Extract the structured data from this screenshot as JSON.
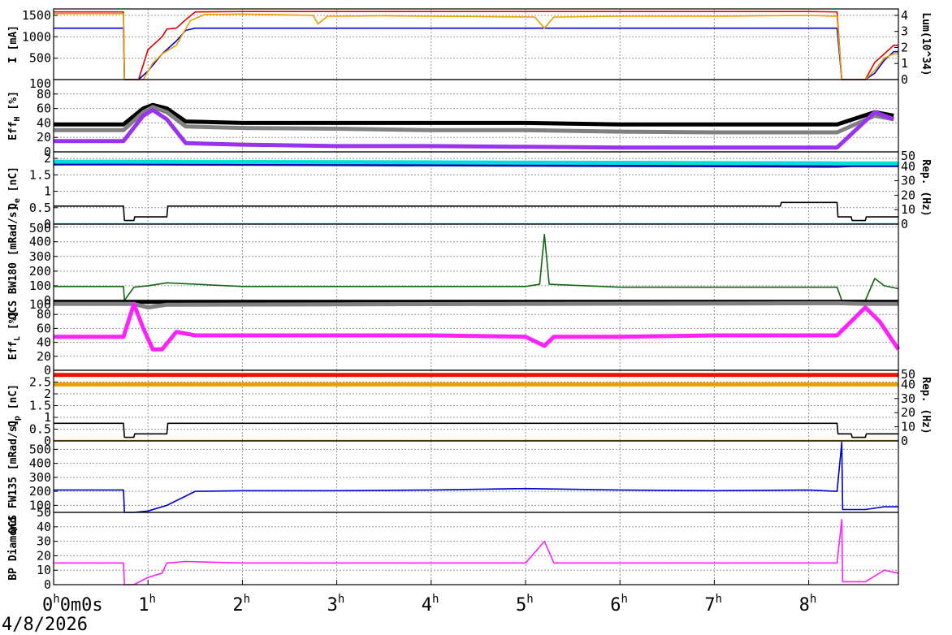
{
  "date_label": "4/8/2026",
  "time_axis": {
    "range_h": [
      0,
      8.95
    ],
    "ticks": [
      {
        "h": 0,
        "label": "0",
        "sup": "h",
        "extra": "0m0s"
      },
      {
        "h": 1,
        "label": "1",
        "sup": "h"
      },
      {
        "h": 2,
        "label": "2",
        "sup": "h"
      },
      {
        "h": 3,
        "label": "3",
        "sup": "h"
      },
      {
        "h": 4,
        "label": "4",
        "sup": "h"
      },
      {
        "h": 5,
        "label": "5",
        "sup": "h"
      },
      {
        "h": 6,
        "label": "6",
        "sup": "h"
      },
      {
        "h": 7,
        "label": "7",
        "sup": "h"
      },
      {
        "h": 8,
        "label": "8",
        "sup": "h"
      }
    ]
  },
  "chart_data": [
    {
      "type": "line",
      "ylabel": "I [mA]",
      "y2label": "Lum(10^34)",
      "ylim": [
        0,
        1650
      ],
      "yticks": [
        500,
        1000,
        1500
      ],
      "y2lim": [
        0,
        4.4
      ],
      "y2ticks": [
        0,
        1,
        2,
        3,
        4
      ],
      "grid": true,
      "series": [
        {
          "color": "#dd0000",
          "x": [
            0,
            0.74,
            0.75,
            0.9,
            1.0,
            1.15,
            1.2,
            1.3,
            1.4,
            1.5,
            2.0,
            3.0,
            4.0,
            5.0,
            6.0,
            7.0,
            8.0,
            8.3,
            8.35,
            8.4,
            8.6,
            8.7,
            8.8,
            8.9,
            8.95
          ],
          "y": [
            1580,
            1580,
            0,
            0,
            700,
            1000,
            1180,
            1200,
            1400,
            1580,
            1590,
            1590,
            1590,
            1590,
            1590,
            1590,
            1590,
            1580,
            0,
            0,
            0,
            400,
            600,
            800,
            800
          ]
        },
        {
          "color": "#0000cc",
          "x": [
            0,
            0.74,
            0.75,
            0.9,
            1.0,
            1.15,
            1.3,
            1.4,
            1.5,
            2.0,
            3.0,
            4.0,
            5.0,
            6.0,
            7.0,
            8.0,
            8.3,
            8.35,
            8.4,
            8.6,
            8.7,
            8.8,
            8.9,
            8.95
          ],
          "y": [
            1200,
            1200,
            0,
            0,
            200,
            600,
            900,
            1150,
            1200,
            1200,
            1200,
            1200,
            1200,
            1200,
            1200,
            1200,
            1200,
            0,
            0,
            0,
            150,
            450,
            650,
            650
          ]
        },
        {
          "color": "#e8a000",
          "x": [
            0,
            0.74,
            0.75,
            0.95,
            1.05,
            1.15,
            1.3,
            1.45,
            1.6,
            2.0,
            2.75,
            2.8,
            2.9,
            3.5,
            4.0,
            5.1,
            5.2,
            5.3,
            6.0,
            7.0,
            8.0,
            8.3,
            8.35,
            8.4,
            8.6,
            8.7,
            8.8,
            8.9,
            8.95
          ],
          "y": [
            1540,
            1540,
            0,
            0,
            380,
            600,
            800,
            1380,
            1520,
            1530,
            1500,
            1300,
            1480,
            1490,
            1480,
            1460,
            1200,
            1460,
            1480,
            1480,
            1500,
            1480,
            0,
            0,
            0,
            220,
            500,
            600,
            600
          ]
        }
      ]
    },
    {
      "type": "scatter",
      "ylabel": "Eff_H [%]",
      "ylim": [
        0,
        100
      ],
      "yticks": [
        0,
        20,
        40,
        60,
        80,
        100
      ],
      "grid": true,
      "series": [
        {
          "color": "#000000",
          "x": [
            0,
            0.74,
            0.95,
            1.05,
            1.2,
            1.4,
            2.0,
            3.0,
            4.0,
            5.0,
            6.0,
            7.0,
            8.0,
            8.3,
            8.7,
            8.9
          ],
          "y": [
            38,
            38,
            60,
            65,
            60,
            42,
            40,
            40,
            40,
            40,
            38,
            38,
            38,
            38,
            55,
            50
          ]
        },
        {
          "color": "#808080",
          "x": [
            0,
            0.74,
            0.95,
            1.05,
            1.2,
            1.4,
            2.0,
            3.0,
            4.0,
            5.0,
            6.0,
            7.0,
            8.0,
            8.3,
            8.7,
            8.9
          ],
          "y": [
            30,
            30,
            55,
            62,
            55,
            35,
            33,
            32,
            30,
            30,
            28,
            27,
            27,
            27,
            50,
            45
          ]
        },
        {
          "color": "#9933ee",
          "x": [
            0,
            0.74,
            0.95,
            1.05,
            1.2,
            1.4,
            2.0,
            3.0,
            4.0,
            5.0,
            6.0,
            7.0,
            8.0,
            8.3,
            8.7,
            8.9
          ],
          "y": [
            15,
            15,
            50,
            58,
            45,
            12,
            10,
            8,
            8,
            7,
            6,
            6,
            6,
            6,
            55,
            45
          ]
        }
      ]
    },
    {
      "type": "scatter",
      "ylabel": "Q_e [nC]",
      "y2label": "Rep. (Hz)",
      "ylim": [
        0,
        2.2
      ],
      "yticks": [
        0,
        0.5,
        1,
        1.5,
        2
      ],
      "y2lim": [
        0,
        50
      ],
      "y2ticks": [
        0,
        10,
        20,
        30,
        40,
        50
      ],
      "grid": true,
      "series": [
        {
          "color": "#0000aa",
          "x": [
            0,
            0.74,
            0.85,
            8.3,
            8.45,
            8.95
          ],
          "y": [
            1.85,
            1.85,
            1.85,
            1.78,
            1.8,
            1.8
          ]
        },
        {
          "color": "#00dddd",
          "x": [
            0,
            0.74,
            0.85,
            8.3,
            8.45,
            8.95
          ],
          "y": [
            1.9,
            1.9,
            1.9,
            1.85,
            1.85,
            1.85
          ]
        },
        {
          "color": "#000000",
          "axis": "y2",
          "x": [
            0,
            0.74,
            0.75,
            0.85,
            0.86,
            1.2,
            1.21,
            7.7,
            7.71,
            8.3,
            8.31,
            8.45,
            8.46,
            8.6,
            8.61,
            8.95
          ],
          "y": [
            12.5,
            12.5,
            2.5,
            2.5,
            5,
            5,
            12.5,
            12.5,
            15,
            15,
            5,
            5,
            2.5,
            2.5,
            5,
            5
          ]
        },
        {
          "color": "#00dddd",
          "axis": "y2",
          "x": [
            0,
            8.95
          ],
          "y": [
            0.3,
            0.3
          ]
        }
      ]
    },
    {
      "type": "line",
      "ylabel": "QCS BW180 [mRad/s]",
      "ylim": [
        0,
        520
      ],
      "yticks": [
        0,
        100,
        200,
        300,
        400,
        500
      ],
      "grid": true,
      "series": [
        {
          "color": "#116611",
          "x": [
            0,
            0.74,
            0.75,
            0.85,
            1.0,
            1.2,
            2.0,
            3.0,
            4.0,
            5.0,
            5.15,
            5.2,
            5.25,
            6.0,
            7.0,
            8.0,
            8.3,
            8.35,
            8.6,
            8.7,
            8.8,
            8.95
          ],
          "y": [
            95,
            95,
            0,
            90,
            100,
            120,
            95,
            95,
            95,
            95,
            110,
            450,
            110,
            90,
            90,
            90,
            90,
            0,
            0,
            150,
            100,
            80
          ]
        }
      ]
    },
    {
      "type": "scatter",
      "ylabel": "Eff_L [%]",
      "ylim": [
        0,
        100
      ],
      "yticks": [
        0,
        20,
        40,
        60,
        80,
        100
      ],
      "grid": true,
      "series": [
        {
          "color": "#000000",
          "x": [
            0,
            0.74,
            0.85,
            8.3,
            8.6,
            8.95
          ],
          "y": [
            98,
            98,
            98,
            98,
            98,
            98
          ]
        },
        {
          "color": "#808080",
          "x": [
            0,
            0.74,
            0.85,
            1.0,
            1.2,
            8.3,
            8.6,
            8.95
          ],
          "y": [
            95,
            95,
            95,
            90,
            94,
            96,
            95,
            95
          ]
        },
        {
          "color": "#ff22ff",
          "x": [
            0,
            0.74,
            0.85,
            0.95,
            1.05,
            1.15,
            1.3,
            1.5,
            2.0,
            3.0,
            4.0,
            5.0,
            5.2,
            5.3,
            6.0,
            7.0,
            8.0,
            8.3,
            8.6,
            8.75,
            8.9,
            8.95
          ],
          "y": [
            48,
            48,
            95,
            60,
            30,
            30,
            55,
            50,
            50,
            50,
            50,
            48,
            35,
            48,
            48,
            50,
            50,
            50,
            90,
            70,
            40,
            30
          ]
        }
      ]
    },
    {
      "type": "scatter",
      "ylabel": "Q_p [nC]",
      "y2label": "Rep. (Hz)",
      "ylim": [
        0,
        3.0
      ],
      "yticks": [
        0,
        0.5,
        1,
        1.5,
        2,
        2.5
      ],
      "y2lim": [
        0,
        50
      ],
      "y2ticks": [
        0,
        10,
        20,
        30,
        40,
        50
      ],
      "grid": true,
      "series": [
        {
          "color": "#ee1100",
          "x": [
            0,
            0.74,
            0.85,
            8.3,
            8.45,
            8.95
          ],
          "y": [
            2.8,
            2.8,
            2.8,
            2.8,
            2.8,
            2.8
          ]
        },
        {
          "color": "#e8a000",
          "x": [
            0,
            0.74,
            0.85,
            8.3,
            8.45,
            8.95
          ],
          "y": [
            2.4,
            2.4,
            2.4,
            2.4,
            2.4,
            2.4
          ]
        },
        {
          "color": "#000000",
          "axis": "y2",
          "x": [
            0,
            0.74,
            0.75,
            0.85,
            0.86,
            1.2,
            1.21,
            8.3,
            8.31,
            8.45,
            8.46,
            8.6,
            8.61,
            8.95
          ],
          "y": [
            12.5,
            12.5,
            2.5,
            2.5,
            5,
            5,
            12.5,
            12.5,
            5,
            5,
            2.5,
            2.5,
            5,
            5
          ]
        },
        {
          "color": "#e8a000",
          "axis": "y2",
          "x": [
            0,
            8.95
          ],
          "y": [
            0.3,
            0.3
          ]
        }
      ]
    },
    {
      "type": "line",
      "ylabel": "QCS FW135 [mRad/s]",
      "ylim": [
        50,
        560
      ],
      "yticks": [
        50,
        100,
        200,
        300,
        400,
        500
      ],
      "grid": true,
      "series": [
        {
          "color": "#0000cc",
          "x": [
            0,
            0.74,
            0.75,
            0.85,
            1.0,
            1.1,
            1.2,
            1.5,
            2.0,
            3.0,
            4.0,
            5.0,
            6.0,
            7.0,
            8.0,
            8.3,
            8.35,
            8.36,
            8.6,
            8.8,
            8.95
          ],
          "y": [
            210,
            210,
            50,
            50,
            60,
            80,
            100,
            200,
            205,
            205,
            210,
            220,
            210,
            205,
            210,
            200,
            550,
            70,
            70,
            90,
            90
          ]
        }
      ]
    },
    {
      "type": "line",
      "ylabel": "BP Diamond",
      "ylim": [
        0,
        50
      ],
      "yticks": [
        0,
        10,
        20,
        30,
        40
      ],
      "grid": true,
      "series": [
        {
          "color": "#ff22ff",
          "x": [
            0,
            0.74,
            0.75,
            0.85,
            1.0,
            1.15,
            1.2,
            1.4,
            2.0,
            3.0,
            4.0,
            5.0,
            5.2,
            5.3,
            6.0,
            7.0,
            8.0,
            8.3,
            8.35,
            8.36,
            8.6,
            8.8,
            8.95
          ],
          "y": [
            15,
            15,
            0,
            0,
            5,
            8,
            15,
            16,
            15,
            15,
            15,
            15,
            30,
            15,
            15,
            15,
            15,
            15,
            45,
            2,
            2,
            10,
            8
          ]
        }
      ]
    }
  ]
}
